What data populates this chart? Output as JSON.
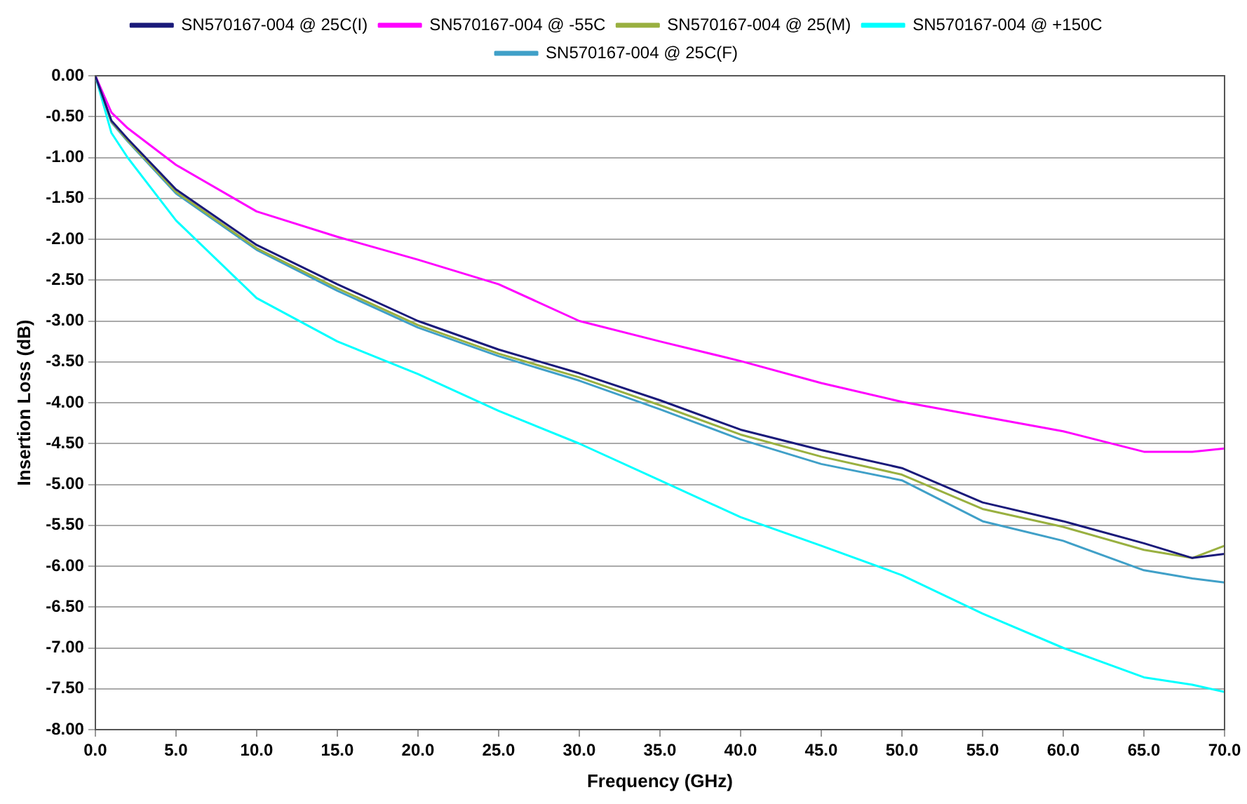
{
  "chart_data": {
    "type": "line",
    "xlabel": "Frequency (GHz)",
    "ylabel": "Insertion Loss (dB)",
    "x": [
      0,
      1,
      2,
      5,
      10,
      15,
      20,
      25,
      30,
      35,
      40,
      45,
      50,
      55,
      60,
      65,
      68,
      70
    ],
    "series": [
      {
        "name": "SN570167-004 @ 25C(I)",
        "color": "#1a1a7a",
        "values": [
          0,
          -0.55,
          -0.77,
          -1.39,
          -2.07,
          -2.55,
          -3.0,
          -3.35,
          -3.64,
          -3.97,
          -4.33,
          -4.58,
          -4.8,
          -5.22,
          -5.45,
          -5.72,
          -5.9,
          -5.85
        ]
      },
      {
        "name": "SN570167-004 @ -55C",
        "color": "#ff00ff",
        "values": [
          0,
          -0.45,
          -0.64,
          -1.09,
          -1.66,
          -1.97,
          -2.25,
          -2.55,
          -3.0,
          -3.25,
          -3.49,
          -3.76,
          -3.99,
          -4.17,
          -4.35,
          -4.6,
          -4.6,
          -4.56
        ]
      },
      {
        "name": "SN570167-004 @ 25(M)",
        "color": "#99b040",
        "values": [
          0,
          -0.56,
          -0.79,
          -1.42,
          -2.11,
          -2.6,
          -3.05,
          -3.4,
          -3.69,
          -4.03,
          -4.39,
          -4.66,
          -4.88,
          -5.3,
          -5.52,
          -5.8,
          -5.9,
          -5.75
        ]
      },
      {
        "name": "SN570167-004 @ +150C",
        "color": "#00ffff",
        "values": [
          0,
          -0.7,
          -1.0,
          -1.77,
          -2.72,
          -3.25,
          -3.65,
          -4.1,
          -4.5,
          -4.95,
          -5.4,
          -5.75,
          -6.11,
          -6.58,
          -7.0,
          -7.36,
          -7.45,
          -7.54
        ]
      },
      {
        "name": "SN570167-004 @ 25C(F)",
        "color": "#40a0c8",
        "values": [
          0,
          -0.57,
          -0.8,
          -1.44,
          -2.13,
          -2.63,
          -3.08,
          -3.43,
          -3.73,
          -4.08,
          -4.45,
          -4.75,
          -4.95,
          -5.45,
          -5.69,
          -6.05,
          -6.15,
          -6.2
        ]
      }
    ],
    "xlim": [
      0,
      70
    ],
    "ylim": [
      -8,
      0
    ],
    "xticks": [
      {
        "value": 0,
        "label": "0.0"
      },
      {
        "value": 5,
        "label": "5.0"
      },
      {
        "value": 10,
        "label": "10.0"
      },
      {
        "value": 15,
        "label": "15.0"
      },
      {
        "value": 20,
        "label": "20.0"
      },
      {
        "value": 25,
        "label": "25.0"
      },
      {
        "value": 30,
        "label": "30.0"
      },
      {
        "value": 35,
        "label": "35.0"
      },
      {
        "value": 40,
        "label": "40.0"
      },
      {
        "value": 45,
        "label": "45.0"
      },
      {
        "value": 50,
        "label": "50.0"
      },
      {
        "value": 55,
        "label": "55.0"
      },
      {
        "value": 60,
        "label": "60.0"
      },
      {
        "value": 65,
        "label": "65.0"
      },
      {
        "value": 70,
        "label": "70.0"
      }
    ],
    "yticks": [
      {
        "value": 0,
        "label": "0.00"
      },
      {
        "value": -0.5,
        "label": "-0.50"
      },
      {
        "value": -1,
        "label": "-1.00"
      },
      {
        "value": -1.5,
        "label": "-1.50"
      },
      {
        "value": -2,
        "label": "-2.00"
      },
      {
        "value": -2.5,
        "label": "-2.50"
      },
      {
        "value": -3,
        "label": "-3.00"
      },
      {
        "value": -3.5,
        "label": "-3.50"
      },
      {
        "value": -4,
        "label": "-4.00"
      },
      {
        "value": -4.5,
        "label": "-4.50"
      },
      {
        "value": -5,
        "label": "-5.00"
      },
      {
        "value": -5.5,
        "label": "-5.50"
      },
      {
        "value": -6,
        "label": "-6.00"
      },
      {
        "value": -6.5,
        "label": "-6.50"
      },
      {
        "value": -7,
        "label": "-7.00"
      },
      {
        "value": -7.5,
        "label": "-7.50"
      },
      {
        "value": -8,
        "label": "-8.00"
      }
    ],
    "grid": "y",
    "legend": "top",
    "marker": "none",
    "line_style": "solid"
  }
}
